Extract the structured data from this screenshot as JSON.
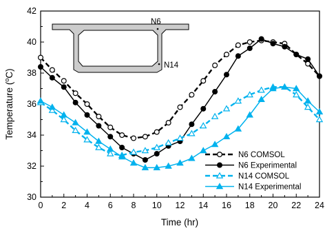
{
  "chart_data": {
    "type": "line",
    "title": "",
    "xlabel": "Time (hr)",
    "ylabel": "Temperature (oC)",
    "ylabel_parts": {
      "main": "Temperature (",
      "sup": "o",
      "unit": "C)"
    },
    "xlim": [
      0,
      24
    ],
    "ylim": [
      30,
      42
    ],
    "x_ticks": [
      "0",
      "2",
      "4",
      "6",
      "8",
      "10",
      "12",
      "14",
      "16",
      "18",
      "20",
      "22",
      "24"
    ],
    "y_ticks": [
      "30",
      "32",
      "34",
      "36",
      "38",
      "40",
      "42"
    ],
    "grid": false,
    "legend_position": "bottom-right",
    "x": [
      0,
      1,
      2,
      3,
      4,
      5,
      6,
      7,
      8,
      9,
      10,
      11,
      12,
      13,
      14,
      15,
      16,
      17,
      18,
      19,
      20,
      21,
      22,
      23,
      24
    ],
    "series": [
      {
        "name": "N6 COMSOL",
        "color": "#000000",
        "line_style": "dashed",
        "marker": "circle-open",
        "values": [
          39.0,
          38.2,
          37.5,
          36.7,
          36.0,
          35.2,
          34.5,
          34.0,
          33.8,
          33.9,
          34.2,
          34.8,
          35.8,
          36.6,
          37.5,
          38.5,
          39.2,
          39.8,
          40.0,
          40.1,
          40.0,
          39.9,
          39.2,
          38.6,
          37.8
        ]
      },
      {
        "name": "N6 Experimental",
        "color": "#000000",
        "line_style": "solid",
        "marker": "circle-filled",
        "values": [
          38.4,
          37.7,
          37.1,
          36.1,
          35.3,
          34.6,
          33.9,
          33.2,
          32.8,
          32.4,
          32.8,
          33.3,
          33.6,
          34.7,
          35.7,
          36.8,
          37.9,
          39.1,
          39.6,
          40.2,
          39.9,
          39.7,
          39.2,
          38.9,
          37.8
        ]
      },
      {
        "name": "N14 COMSOL",
        "color": "#00b2ee",
        "line_style": "dashed",
        "marker": "triangle-open",
        "values": [
          36.1,
          35.6,
          35.0,
          34.3,
          33.7,
          33.2,
          32.8,
          32.7,
          32.9,
          33.0,
          33.2,
          33.5,
          33.8,
          34.1,
          34.6,
          35.2,
          35.7,
          36.2,
          36.6,
          36.9,
          37.1,
          37.1,
          36.6,
          35.8,
          35.0
        ]
      },
      {
        "name": "N14 Experimental",
        "color": "#00b2ee",
        "line_style": "solid",
        "marker": "triangle-filled",
        "values": [
          36.2,
          35.8,
          35.3,
          34.8,
          34.2,
          33.6,
          33.1,
          32.6,
          32.2,
          31.9,
          31.9,
          32.0,
          32.2,
          32.5,
          33.0,
          33.4,
          33.9,
          34.4,
          35.3,
          36.3,
          37.0,
          37.1,
          37.0,
          36.2,
          35.5
        ]
      }
    ],
    "inset": {
      "labels": {
        "top": "N6",
        "bottom": "N14"
      }
    }
  }
}
